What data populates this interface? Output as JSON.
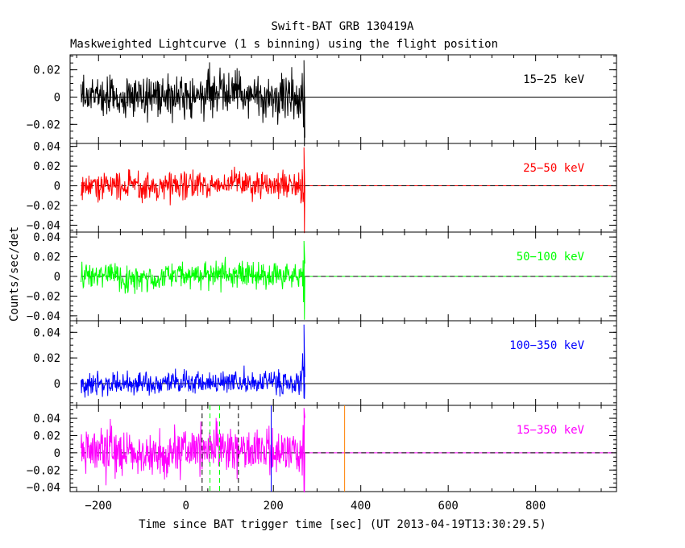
{
  "chart_data": {
    "type": "line",
    "title": "Swift-BAT GRB 130419A",
    "subtitle": "Maskweighted Lightcurve (1 s binning) using the flight position",
    "xlabel": "Time since BAT trigger time [sec] (UT 2013-04-19T13:30:29.5)",
    "ylabel": "Counts/sec/det",
    "xlim": [
      -265,
      985
    ],
    "x_ticks": [
      -200,
      0,
      200,
      400,
      600,
      800
    ],
    "x_tick_labels": [
      "−200",
      "0",
      "200",
      "400",
      "600",
      "800"
    ],
    "data_range": [
      -240,
      272
    ],
    "grid": false,
    "panels": [
      {
        "name": "15−25 keV",
        "color": "#000000",
        "ylim": [
          -0.034,
          0.031
        ],
        "y_ticks": [
          -0.02,
          0,
          0.02
        ],
        "y_tick_labels": [
          "−0.02",
          "0",
          "0.02"
        ],
        "noise_sigma": 0.0085,
        "burst_peak": 0.027,
        "burst_trough": -0.036,
        "baseline_style": "solid"
      },
      {
        "name": "25−50 keV",
        "color": "#ff0000",
        "ylim": [
          -0.047,
          0.043
        ],
        "y_ticks": [
          -0.04,
          -0.02,
          0,
          0.02,
          0.04
        ],
        "y_tick_labels": [
          "−0.04",
          "−0.02",
          "0",
          "0.02",
          "0.04"
        ],
        "noise_sigma": 0.0075,
        "burst_peak": 0.039,
        "burst_trough": -0.048,
        "baseline_style": "dashed"
      },
      {
        "name": "50−100 keV",
        "color": "#00ff00",
        "ylim": [
          -0.045,
          0.045
        ],
        "y_ticks": [
          -0.04,
          -0.02,
          0,
          0.02,
          0.04
        ],
        "y_tick_labels": [
          "−0.04",
          "−0.02",
          "0",
          "0.02",
          "0.04"
        ],
        "noise_sigma": 0.0068,
        "burst_peak": 0.036,
        "burst_trough": -0.044,
        "baseline_style": "dashed"
      },
      {
        "name": "100−350 keV",
        "color": "#0000ff",
        "ylim": [
          -0.017,
          0.049
        ],
        "y_ticks": [
          0,
          0.02,
          0.04
        ],
        "y_tick_labels": [
          "0",
          "0.02",
          "0.04"
        ],
        "noise_sigma": 0.0048,
        "burst_peak": 0.046,
        "burst_trough": -0.012,
        "baseline_style": "solid"
      },
      {
        "name": "15−350 keV",
        "color": "#ff00ff",
        "ylim": [
          -0.045,
          0.055
        ],
        "y_ticks": [
          -0.04,
          -0.02,
          0,
          0.02,
          0.04
        ],
        "y_tick_labels": [
          "−0.04",
          "−0.02",
          "0",
          "0.02",
          "0.04"
        ],
        "noise_sigma": 0.0135,
        "burst_peak": 0.052,
        "burst_trough": -0.046,
        "baseline_style": "dashed"
      }
    ],
    "markers": [
      {
        "x": 37,
        "color": "#000000",
        "style": "dashed"
      },
      {
        "x": 120,
        "color": "#000000",
        "style": "dashed"
      },
      {
        "x": 55,
        "color": "#00ff00",
        "style": "dashed"
      },
      {
        "x": 77,
        "color": "#00ff00",
        "style": "dashed"
      },
      {
        "x": 195,
        "color": "#0000ff",
        "style": "solid"
      },
      {
        "x": 363,
        "color": "#ff8000",
        "style": "solid"
      }
    ]
  }
}
